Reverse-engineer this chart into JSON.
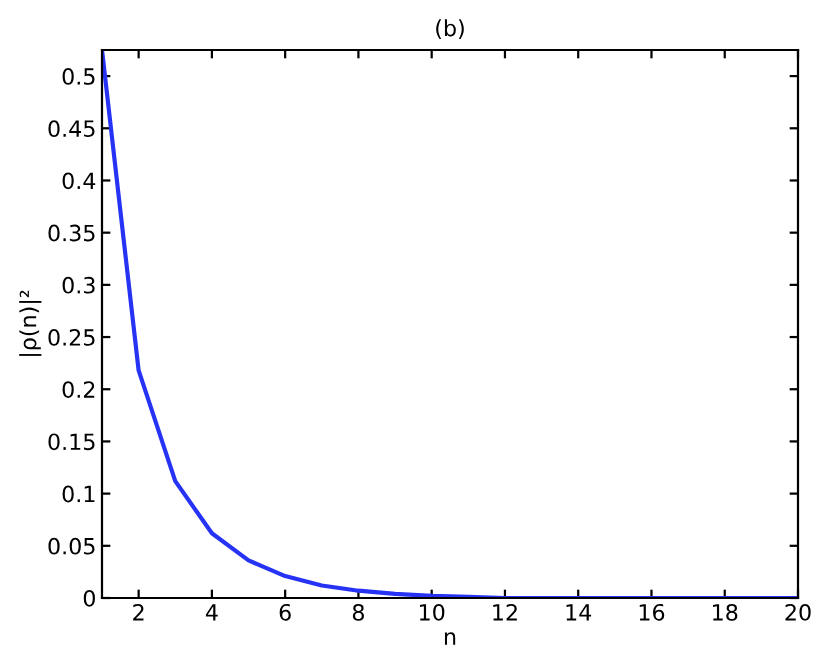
{
  "chart_data": {
    "type": "line",
    "title": "(b)",
    "xlabel": "n",
    "ylabel": "|ρ(n)|²",
    "x": [
      1,
      2,
      3,
      4,
      5,
      6,
      7,
      8,
      9,
      10,
      11,
      12,
      13,
      14,
      15,
      16,
      17,
      18,
      19,
      20
    ],
    "series": [
      {
        "color": "#2633f5",
        "values": [
          0.525,
          0.218,
          0.112,
          0.062,
          0.036,
          0.021,
          0.012,
          0.007,
          0.004,
          0.002,
          0.001,
          0,
          0,
          0,
          0,
          0,
          0,
          0,
          0,
          0
        ]
      }
    ],
    "xlim": [
      1,
      20
    ],
    "ylim": [
      0,
      0.525
    ],
    "xticks": [
      2,
      4,
      6,
      8,
      10,
      12,
      14,
      16,
      18,
      20
    ],
    "yticks": [
      0,
      0.05,
      0.1,
      0.15,
      0.2,
      0.25,
      0.3,
      0.35,
      0.4,
      0.45,
      0.5
    ],
    "grid": false,
    "marker": "none",
    "line_style": "solid"
  }
}
